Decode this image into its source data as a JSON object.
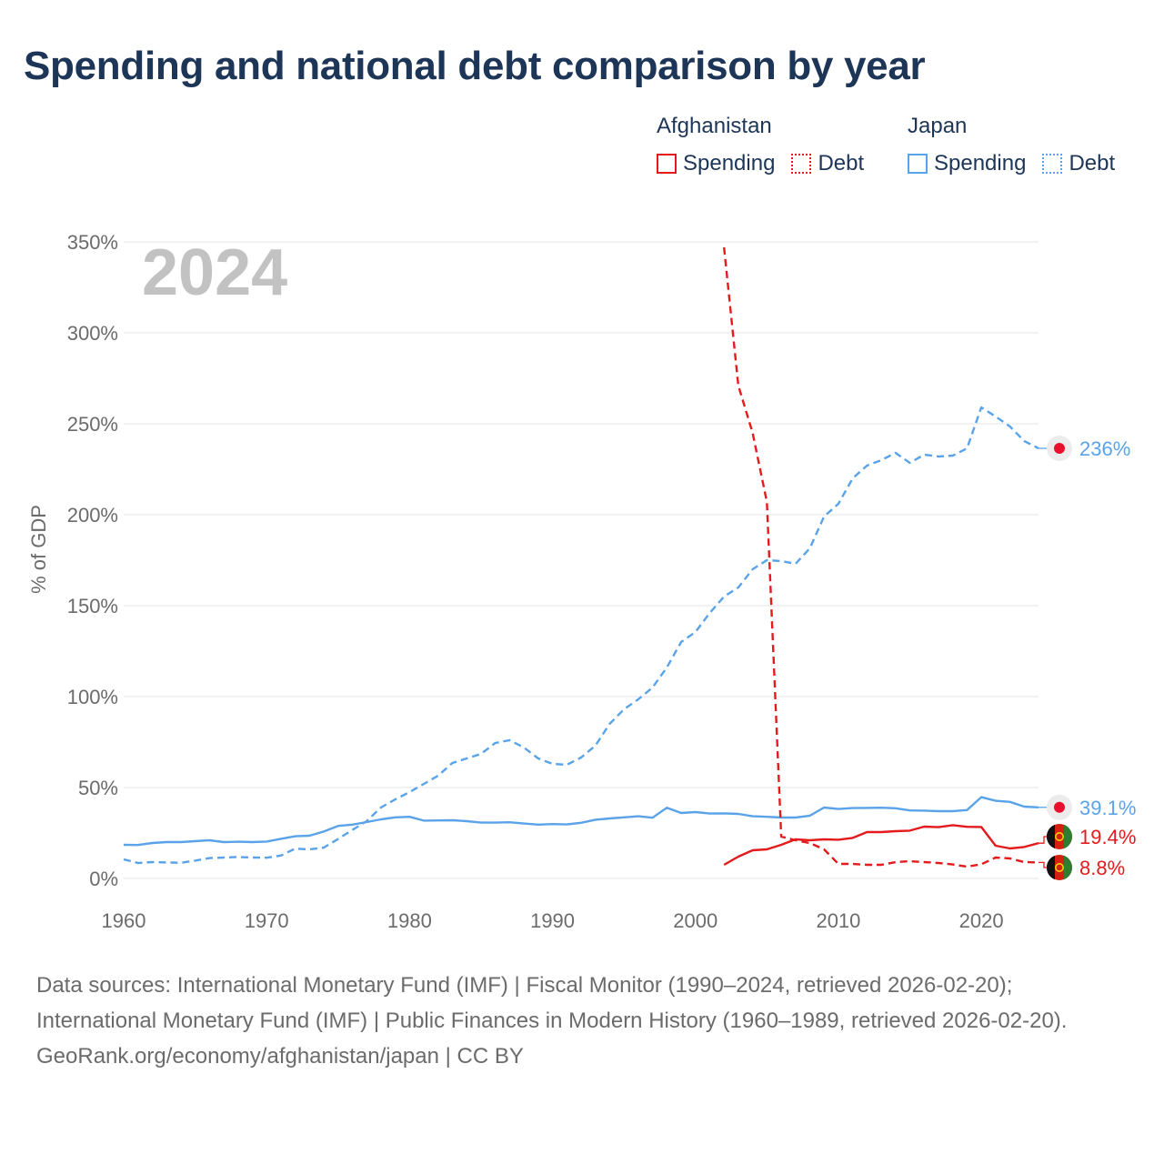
{
  "title": "Spending and national debt comparison by year",
  "legend": {
    "groups": [
      {
        "name": "Afghanistan",
        "spending": "Spending",
        "debt": "Debt"
      },
      {
        "name": "Japan",
        "spending": "Spending",
        "debt": "Debt"
      }
    ]
  },
  "footer": {
    "sources": "Data sources: International Monetary Fund (IMF) | Fiscal Monitor (1990–2024, retrieved 2026-02-20); International Monetary Fund (IMF) | Public Finances in Modern History (1960–1989, retrieved 2026-02-20).",
    "attribution": "GeoRank.org/economy/afghanistan/japan | CC BY"
  },
  "chart_data": {
    "type": "line",
    "ylabel": "% of GDP",
    "ylim": [
      0,
      350
    ],
    "xlim": [
      1960,
      2024
    ],
    "yticks": [
      0,
      50,
      100,
      150,
      200,
      250,
      300,
      350
    ],
    "ytick_labels": [
      "0%",
      "50%",
      "100%",
      "150%",
      "200%",
      "250%",
      "300%",
      "350%"
    ],
    "xticks": [
      1960,
      1970,
      1980,
      1990,
      2000,
      2010,
      2020
    ],
    "xtick_labels": [
      "1960",
      "1970",
      "1980",
      "1990",
      "2000",
      "2010",
      "2020"
    ],
    "year_label": "2024",
    "grid": true,
    "colors": {
      "afghanistan": "#e41a1c",
      "japan": "#5aa3e8"
    },
    "series": [
      {
        "name": "Japan Spending",
        "country": "japan",
        "style": "solid",
        "end_label": "39.1%",
        "x": [
          1960,
          1961,
          1962,
          1963,
          1964,
          1965,
          1966,
          1967,
          1968,
          1969,
          1970,
          1971,
          1972,
          1973,
          1974,
          1975,
          1976,
          1977,
          1978,
          1979,
          1980,
          1981,
          1982,
          1983,
          1984,
          1985,
          1986,
          1987,
          1988,
          1989,
          1990,
          1991,
          1992,
          1993,
          1994,
          1995,
          1996,
          1997,
          1998,
          1999,
          2000,
          2001,
          2002,
          2003,
          2004,
          2005,
          2006,
          2007,
          2008,
          2009,
          2010,
          2011,
          2012,
          2013,
          2014,
          2015,
          2016,
          2017,
          2018,
          2019,
          2020,
          2021,
          2022,
          2023,
          2024
        ],
        "values": [
          18.5,
          18.4,
          19.5,
          20.0,
          20.0,
          20.5,
          21.0,
          20.0,
          20.2,
          20.0,
          20.3,
          21.8,
          23.2,
          23.5,
          25.8,
          28.9,
          29.6,
          31.0,
          32.5,
          33.6,
          33.9,
          31.8,
          31.9,
          32.0,
          31.5,
          30.7,
          30.7,
          30.9,
          30.2,
          29.6,
          29.9,
          29.7,
          30.6,
          32.3,
          33.0,
          33.6,
          34.2,
          33.4,
          38.9,
          36.0,
          36.5,
          35.7,
          35.8,
          35.5,
          34.2,
          33.9,
          33.5,
          33.5,
          34.5,
          39.0,
          38.2,
          38.7,
          38.8,
          38.9,
          38.6,
          37.4,
          37.3,
          37.0,
          37.0,
          37.6,
          44.7,
          42.7,
          42.1,
          39.5,
          39.1
        ]
      },
      {
        "name": "Japan Debt",
        "country": "japan",
        "style": "dashed",
        "end_label": "236%",
        "x": [
          1960,
          1961,
          1962,
          1963,
          1964,
          1965,
          1966,
          1967,
          1968,
          1969,
          1970,
          1971,
          1972,
          1973,
          1974,
          1975,
          1976,
          1977,
          1978,
          1979,
          1980,
          1981,
          1982,
          1983,
          1984,
          1985,
          1986,
          1987,
          1988,
          1989,
          1990,
          1991,
          1992,
          1993,
          1994,
          1995,
          1996,
          1997,
          1998,
          1999,
          2000,
          2001,
          2002,
          2003,
          2004,
          2005,
          2006,
          2007,
          2008,
          2009,
          2010,
          2011,
          2012,
          2013,
          2014,
          2015,
          2016,
          2017,
          2018,
          2019,
          2020,
          2021,
          2022,
          2023,
          2024
        ],
        "values": [
          10.5,
          8.5,
          9.0,
          8.8,
          8.6,
          9.8,
          11.2,
          11.5,
          11.8,
          11.5,
          11.4,
          12.6,
          16.4,
          16.0,
          17.0,
          21.7,
          26.7,
          31.5,
          39.0,
          43.5,
          47.5,
          52.0,
          56.5,
          63.5,
          66.0,
          68.5,
          74.5,
          76.0,
          72.0,
          66.0,
          63.0,
          62.5,
          66.5,
          73.0,
          85.0,
          93.0,
          98.5,
          105.0,
          116.0,
          130.0,
          135.5,
          146.0,
          155.0,
          160.0,
          170.0,
          175.0,
          174.5,
          173.0,
          181.5,
          199.0,
          206.0,
          220.0,
          227.0,
          230.0,
          234.0,
          228.5,
          233.0,
          232.0,
          232.5,
          236.5,
          259.0,
          254.0,
          248.5,
          240.5,
          236.5
        ]
      },
      {
        "name": "Afghanistan Spending",
        "country": "afghanistan",
        "style": "solid",
        "end_label": "19.4%",
        "x": [
          2002,
          2003,
          2004,
          2005,
          2006,
          2007,
          2008,
          2009,
          2010,
          2011,
          2012,
          2013,
          2014,
          2015,
          2016,
          2017,
          2018,
          2019,
          2020,
          2021,
          2022,
          2023,
          2024
        ],
        "values": [
          7.5,
          12.0,
          15.5,
          16.0,
          18.5,
          21.5,
          21.0,
          21.5,
          21.3,
          22.3,
          25.5,
          25.5,
          26.0,
          26.3,
          28.5,
          28.2,
          29.3,
          28.4,
          28.3,
          18.0,
          16.5,
          17.3,
          19.4
        ]
      },
      {
        "name": "Afghanistan Debt",
        "country": "afghanistan",
        "style": "dashed",
        "end_label": "8.8%",
        "x": [
          2002,
          2003,
          2004,
          2005,
          2006,
          2007,
          2008,
          2009,
          2010,
          2011,
          2012,
          2013,
          2014,
          2015,
          2016,
          2017,
          2018,
          2019,
          2020,
          2021,
          2022,
          2023,
          2024
        ],
        "values": [
          347.0,
          271.0,
          245.0,
          207.0,
          23.0,
          21.0,
          19.5,
          16.0,
          8.0,
          8.0,
          7.5,
          7.5,
          9.0,
          9.5,
          9.0,
          8.5,
          7.7,
          6.5,
          7.8,
          11.5,
          11.0,
          9.0,
          8.8
        ]
      }
    ]
  }
}
